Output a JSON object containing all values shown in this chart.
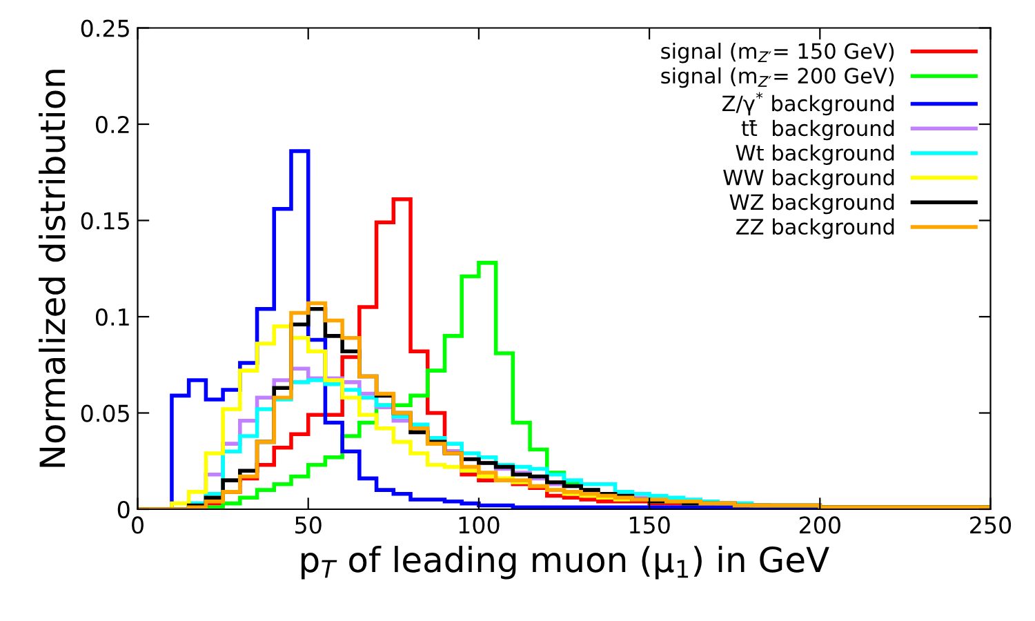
{
  "chart_data": {
    "type": "histogram",
    "xlabel": "p$_{T}$ of leading muon (μ$_{1}$) in GeV",
    "ylabel": "Normalized distribution",
    "bins": [
      0,
      5,
      10,
      15,
      20,
      25,
      30,
      35,
      40,
      45,
      50,
      55,
      60,
      65,
      70,
      75,
      80,
      85,
      90,
      95,
      100,
      105,
      110,
      115,
      120,
      125,
      130,
      135,
      140,
      145,
      150,
      155,
      160,
      165,
      170,
      175,
      180,
      185,
      190,
      195,
      200,
      205,
      210,
      215,
      220,
      225,
      230,
      235,
      240,
      245,
      250
    ],
    "series": [
      {
        "name": "signal (m$_{Z′}$= 150 GeV)",
        "color": "#ff0000",
        "values": [
          0,
          0,
          0,
          0.001,
          0.003,
          0.009,
          0.016,
          0.023,
          0.032,
          0.039,
          0.049,
          0.049,
          0.079,
          0.105,
          0.149,
          0.161,
          0.082,
          0.05,
          0.03,
          0.018,
          0.015,
          0.015,
          0.013,
          0.011,
          0.007,
          0.006,
          0.005,
          0.004,
          0.004,
          0.004,
          0.003,
          0.003,
          0.002,
          0.002,
          0.002,
          0.002,
          0.002,
          0.001,
          0.001,
          0.001,
          0.001,
          0.001,
          0.001,
          0.001,
          0.001,
          0.001,
          0.001,
          0.001,
          0.001,
          0.001
        ]
      },
      {
        "name": "signal (m$_{Z′}$= 200 GeV)",
        "color": "#00ff00",
        "values": [
          0,
          0,
          0,
          0.001,
          0.001,
          0.003,
          0.006,
          0.01,
          0.013,
          0.017,
          0.023,
          0.027,
          0.038,
          0.045,
          0.054,
          0.054,
          0.059,
          0.072,
          0.09,
          0.121,
          0.128,
          0.081,
          0.045,
          0.031,
          0.019,
          0.013,
          0.01,
          0.008,
          0.006,
          0.005,
          0.004,
          0.004,
          0.003,
          0.003,
          0.002,
          0.002,
          0.002,
          0.001,
          0.001,
          0.001,
          0.001,
          0.001,
          0.001,
          0.001,
          0.001,
          0.001,
          0.001,
          0.001,
          0.001,
          0.001
        ]
      },
      {
        "name": "Z/γ$^{*}$ background",
        "color": "#0000ff",
        "values": [
          0,
          0,
          0.059,
          0.067,
          0.057,
          0.062,
          0.076,
          0.104,
          0.156,
          0.186,
          0.088,
          0.045,
          0.03,
          0.016,
          0.01,
          0.008,
          0.005,
          0.005,
          0.004,
          0.003,
          0.002,
          0.002,
          0.001,
          0.001,
          0.001,
          0.001,
          0.001,
          0.001,
          0.001,
          0.001,
          0.001,
          0.001,
          0.001,
          0.001,
          0.001,
          0.001,
          0,
          0,
          0,
          0,
          0,
          0,
          0,
          0,
          0,
          0,
          0,
          0,
          0,
          0
        ]
      },
      {
        "name": "tt̄  background",
        "color": "#c080ff",
        "values": [
          0,
          0,
          0,
          0.003,
          0.018,
          0.034,
          0.046,
          0.058,
          0.067,
          0.073,
          0.068,
          0.068,
          0.066,
          0.06,
          0.053,
          0.046,
          0.04,
          0.035,
          0.03,
          0.026,
          0.024,
          0.021,
          0.019,
          0.016,
          0.013,
          0.012,
          0.01,
          0.008,
          0.007,
          0.006,
          0.005,
          0.005,
          0.004,
          0.004,
          0.003,
          0.003,
          0.002,
          0.002,
          0.002,
          0.002,
          0.001,
          0.001,
          0.001,
          0.001,
          0.001,
          0.001,
          0.001,
          0.001,
          0.001,
          0.001
        ]
      },
      {
        "name": "Wt background",
        "color": "#00ffff",
        "values": [
          0,
          0,
          0,
          0.003,
          0.008,
          0.03,
          0.038,
          0.052,
          0.057,
          0.066,
          0.067,
          0.065,
          0.062,
          0.058,
          0.054,
          0.048,
          0.044,
          0.037,
          0.034,
          0.029,
          0.027,
          0.023,
          0.022,
          0.021,
          0.018,
          0.015,
          0.013,
          0.013,
          0.009,
          0.008,
          0.007,
          0.006,
          0.005,
          0.004,
          0.003,
          0.003,
          0.002,
          0.002,
          0.002,
          0.002,
          0.001,
          0.001,
          0.001,
          0.001,
          0.001,
          0.001,
          0.001,
          0.001,
          0.001,
          0.001
        ]
      },
      {
        "name": "WW background",
        "color": "#ffff00",
        "values": [
          0,
          0,
          0.003,
          0.009,
          0.029,
          0.052,
          0.072,
          0.086,
          0.095,
          0.089,
          0.082,
          0.067,
          0.058,
          0.049,
          0.042,
          0.035,
          0.029,
          0.023,
          0.022,
          0.02,
          0.017,
          0.016,
          0.014,
          0.012,
          0.01,
          0.008,
          0.007,
          0.006,
          0.005,
          0.005,
          0.004,
          0.004,
          0.003,
          0.003,
          0.003,
          0.002,
          0.002,
          0.002,
          0.002,
          0.002,
          0.001,
          0.001,
          0.001,
          0.001,
          0.001,
          0.001,
          0.001,
          0.001,
          0.001,
          0.001
        ]
      },
      {
        "name": "WZ background",
        "color": "#000000",
        "values": [
          0,
          0,
          0,
          0.002,
          0.006,
          0.015,
          0.02,
          0.035,
          0.063,
          0.096,
          0.104,
          0.09,
          0.082,
          0.069,
          0.059,
          0.05,
          0.04,
          0.035,
          0.029,
          0.026,
          0.024,
          0.022,
          0.018,
          0.017,
          0.014,
          0.012,
          0.01,
          0.008,
          0.007,
          0.005,
          0.004,
          0.004,
          0.003,
          0.003,
          0.003,
          0.002,
          0.002,
          0.002,
          0.002,
          0.002,
          0.001,
          0.001,
          0.001,
          0.001,
          0.001,
          0.001,
          0.001,
          0.001,
          0.001,
          0.001
        ]
      },
      {
        "name": "ZZ background",
        "color": "#ffa500",
        "values": [
          0,
          0,
          0,
          0.001,
          0.004,
          0.009,
          0.017,
          0.035,
          0.058,
          0.102,
          0.107,
          0.098,
          0.089,
          0.069,
          0.06,
          0.05,
          0.042,
          0.034,
          0.029,
          0.022,
          0.019,
          0.015,
          0.015,
          0.012,
          0.01,
          0.009,
          0.008,
          0.007,
          0.006,
          0.005,
          0.005,
          0.004,
          0.004,
          0.003,
          0.003,
          0.002,
          0.002,
          0.002,
          0.002,
          0.002,
          0.001,
          0.001,
          0.001,
          0.001,
          0.001,
          0.001,
          0.001,
          0.001,
          0.001,
          0.001
        ]
      }
    ],
    "xlim": [
      0,
      250
    ],
    "xticks": [
      0,
      50,
      100,
      150,
      200,
      250
    ],
    "ylim": [
      0,
      0.25
    ],
    "yticks": [
      0,
      0.05,
      0.1,
      0.15,
      0.2,
      0.25
    ],
    "grid": false,
    "legend": "top right"
  }
}
